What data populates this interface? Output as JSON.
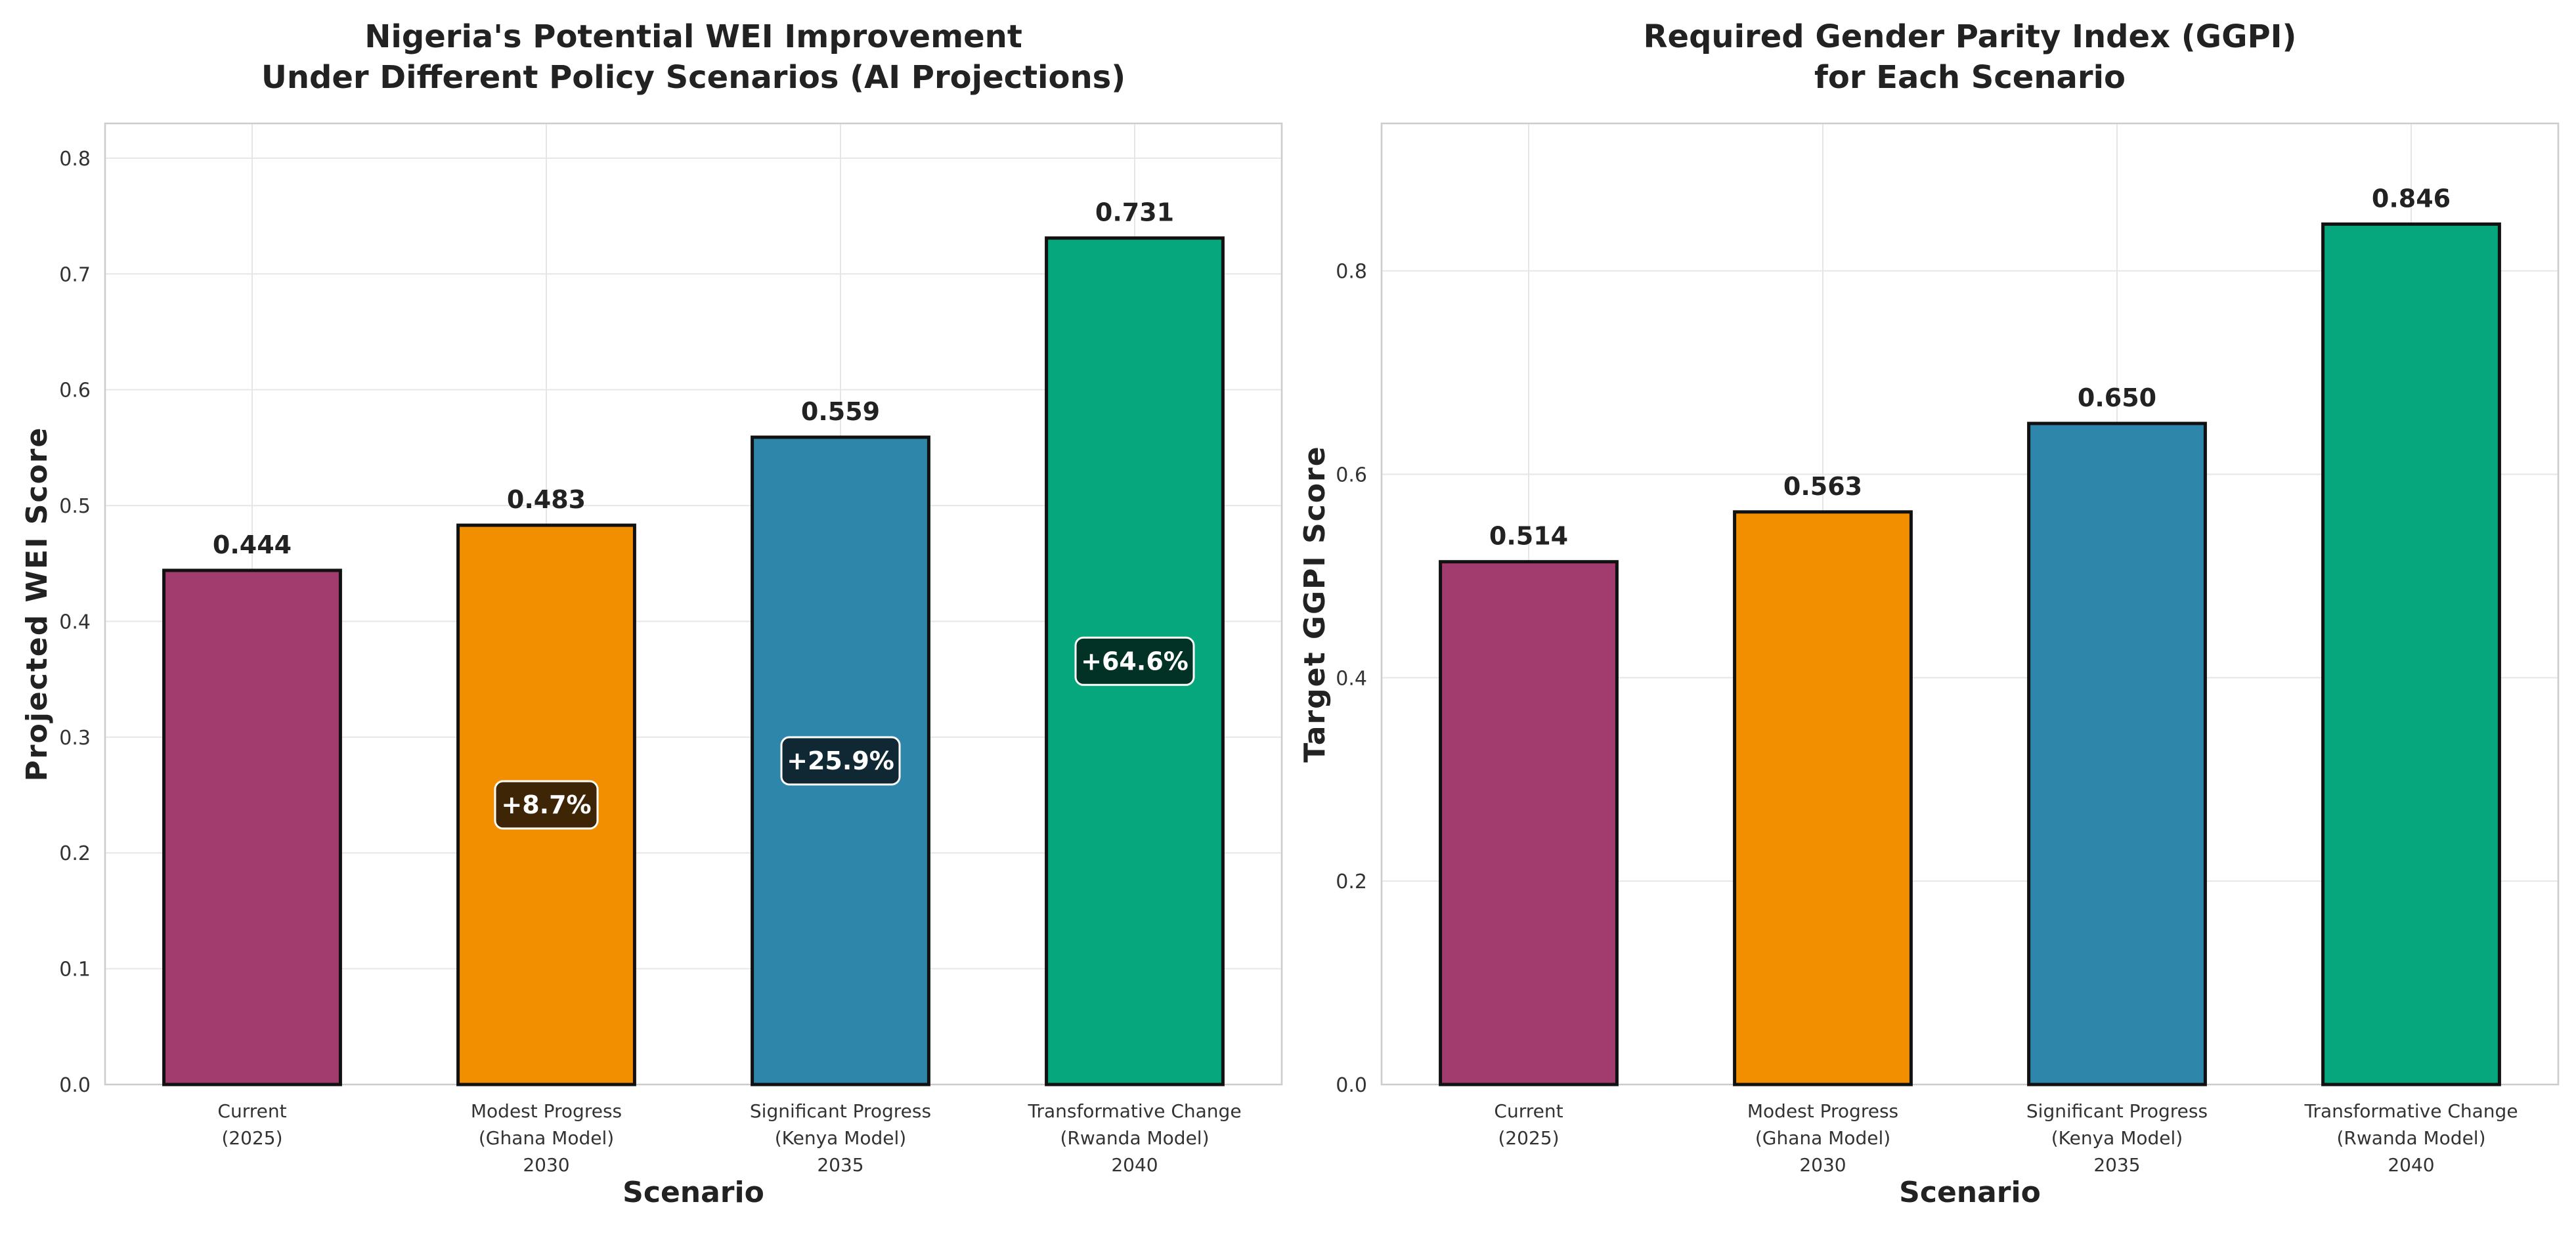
{
  "chart_data": [
    {
      "type": "bar",
      "title": [
        "Nigeria's Potential WEI Improvement",
        "Under Different Policy Scenarios (AI Projections)"
      ],
      "xlabel": "Scenario",
      "ylabel": "Projected WEI Score",
      "ylim": [
        0,
        0.83
      ],
      "yticks": [
        0.0,
        0.1,
        0.2,
        0.3,
        0.4,
        0.5,
        0.6,
        0.7,
        0.8
      ],
      "yticks_fmt": 1,
      "categories": [
        [
          "Current",
          "(2025)"
        ],
        [
          "Modest Progress",
          "(Ghana Model)",
          "2030"
        ],
        [
          "Significant Progress",
          "(Kenya Model)",
          "2035"
        ],
        [
          "Transformative Change",
          "(Rwanda Model)",
          "2040"
        ]
      ],
      "values": [
        0.444,
        0.483,
        0.559,
        0.731
      ],
      "value_labels": [
        "0.444",
        "0.483",
        "0.559",
        "0.731"
      ],
      "improvement_labels": [
        null,
        "+8.7%",
        "+25.9%",
        "+64.6%"
      ],
      "grid": true
    },
    {
      "type": "bar",
      "title": [
        "Required Gender Parity Index (GGPI)",
        "for Each Scenario"
      ],
      "xlabel": "Scenario",
      "ylabel": "Target GGPI Score",
      "ylim": [
        0,
        0.945
      ],
      "yticks": [
        0.0,
        0.2,
        0.4,
        0.6,
        0.8
      ],
      "yticks_fmt": 1,
      "categories": [
        [
          "Current",
          "(2025)"
        ],
        [
          "Modest Progress",
          "(Ghana Model)",
          "2030"
        ],
        [
          "Significant Progress",
          "(Kenya Model)",
          "2035"
        ],
        [
          "Transformative Change",
          "(Rwanda Model)",
          "2040"
        ]
      ],
      "values": [
        0.514,
        0.563,
        0.65,
        0.846
      ],
      "value_labels": [
        "0.514",
        "0.563",
        "0.650",
        "0.846"
      ],
      "improvement_labels": [
        null,
        null,
        null,
        null
      ],
      "grid": true
    }
  ],
  "colors": {
    "bars": [
      "#A23B6E",
      "#F18F01",
      "#2E86AB",
      "#06A77D"
    ],
    "bar_edge": "#111111",
    "badge_fill": [
      "#000000",
      "#2a1a05",
      "#0c1e26",
      "#02261c"
    ],
    "grid": "#e6e6e6",
    "spine": "#cccccc"
  }
}
